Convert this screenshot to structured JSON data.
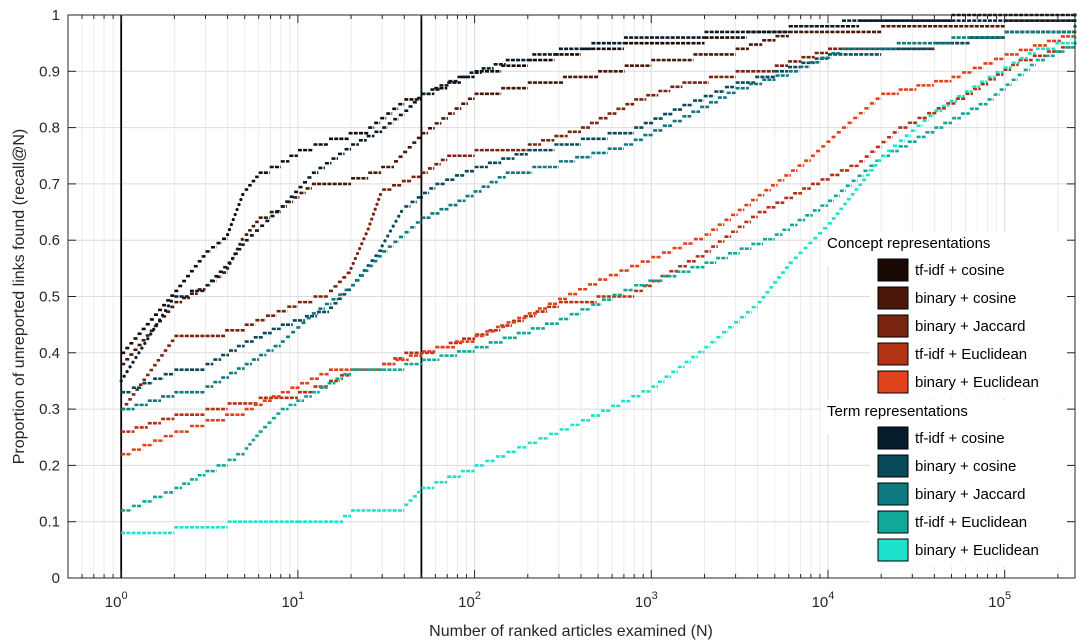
{
  "chart_data": {
    "type": "scatter",
    "title": "",
    "xlabel": "Number of ranked articles examined (N)",
    "ylabel": "Proportion of unreported links found (recall@N)",
    "xscale": "log",
    "xlim": [
      0.5,
      250000
    ],
    "ylim": [
      0,
      1
    ],
    "grid": true,
    "x_ticks": [
      {
        "value": 1,
        "base": "10",
        "exp": "0"
      },
      {
        "value": 10,
        "base": "10",
        "exp": "1"
      },
      {
        "value": 100,
        "base": "10",
        "exp": "2"
      },
      {
        "value": 1000,
        "base": "10",
        "exp": "3"
      },
      {
        "value": 10000,
        "base": "10",
        "exp": "4"
      },
      {
        "value": 100000,
        "base": "10",
        "exp": "5"
      }
    ],
    "y_ticks": [
      "0",
      "0.1",
      "0.2",
      "0.3",
      "0.4",
      "0.5",
      "0.6",
      "0.7",
      "0.8",
      "0.9",
      "1"
    ],
    "vertical_lines": [
      1,
      50
    ],
    "legend_placement": "right",
    "legend_groups": [
      {
        "heading": "Concept representations",
        "series": [
          0,
          1,
          2,
          3,
          4
        ]
      },
      {
        "heading": "Term representations",
        "series": [
          5,
          6,
          7,
          8,
          9
        ]
      }
    ],
    "series": [
      {
        "name": "tf-idf + cosine",
        "color": "#1a0a05",
        "points": [
          [
            1,
            0.4
          ],
          [
            2,
            0.51
          ],
          [
            3,
            0.58
          ],
          [
            4,
            0.61
          ],
          [
            5,
            0.69
          ],
          [
            6,
            0.72
          ],
          [
            8,
            0.74
          ],
          [
            10,
            0.76
          ],
          [
            15,
            0.78
          ],
          [
            25,
            0.8
          ],
          [
            40,
            0.85
          ],
          [
            50,
            0.86
          ],
          [
            70,
            0.88
          ],
          [
            100,
            0.9
          ],
          [
            200,
            0.92
          ],
          [
            400,
            0.94
          ],
          [
            700,
            0.95
          ],
          [
            2000,
            0.96
          ],
          [
            6000,
            0.98
          ],
          [
            15000,
            0.99
          ],
          [
            50000,
            1.0
          ],
          [
            250000,
            1.0
          ]
        ]
      },
      {
        "name": "binary + cosine",
        "color": "#4a1708",
        "points": [
          [
            1,
            0.38
          ],
          [
            2,
            0.49
          ],
          [
            3,
            0.52
          ],
          [
            4,
            0.55
          ],
          [
            5,
            0.61
          ],
          [
            6,
            0.64
          ],
          [
            8,
            0.66
          ],
          [
            12,
            0.7
          ],
          [
            20,
            0.71
          ],
          [
            25,
            0.72
          ],
          [
            35,
            0.74
          ],
          [
            50,
            0.79
          ],
          [
            100,
            0.86
          ],
          [
            200,
            0.88
          ],
          [
            500,
            0.9
          ],
          [
            1000,
            0.92
          ],
          [
            3000,
            0.94
          ],
          [
            6000,
            0.97
          ],
          [
            20000,
            0.98
          ],
          [
            100000,
            0.99
          ],
          [
            250000,
            0.99
          ]
        ]
      },
      {
        "name": "binary + Jaccard",
        "color": "#7a2510",
        "points": [
          [
            1,
            0.3
          ],
          [
            2,
            0.43
          ],
          [
            3,
            0.43
          ],
          [
            5,
            0.45
          ],
          [
            10,
            0.49
          ],
          [
            15,
            0.51
          ],
          [
            20,
            0.55
          ],
          [
            25,
            0.62
          ],
          [
            30,
            0.69
          ],
          [
            50,
            0.72
          ],
          [
            70,
            0.75
          ],
          [
            100,
            0.76
          ],
          [
            200,
            0.77
          ],
          [
            400,
            0.8
          ],
          [
            800,
            0.85
          ],
          [
            1500,
            0.88
          ],
          [
            3000,
            0.9
          ],
          [
            5000,
            0.91
          ],
          [
            10000,
            0.94
          ],
          [
            40000,
            0.95
          ],
          [
            100000,
            0.97
          ],
          [
            250000,
            0.98
          ]
        ]
      },
      {
        "name": "tf-idf + Euclidean",
        "color": "#b23414",
        "points": [
          [
            1,
            0.26
          ],
          [
            2,
            0.29
          ],
          [
            3,
            0.3
          ],
          [
            4,
            0.31
          ],
          [
            6,
            0.32
          ],
          [
            10,
            0.33
          ],
          [
            15,
            0.35
          ],
          [
            20,
            0.37
          ],
          [
            30,
            0.38
          ],
          [
            40,
            0.4
          ],
          [
            60,
            0.41
          ],
          [
            120,
            0.44
          ],
          [
            300,
            0.49
          ],
          [
            800,
            0.51
          ],
          [
            2000,
            0.58
          ],
          [
            4000,
            0.65
          ],
          [
            8000,
            0.7
          ],
          [
            15000,
            0.74
          ],
          [
            25000,
            0.8
          ],
          [
            60000,
            0.86
          ],
          [
            120000,
            0.92
          ],
          [
            250000,
            0.95
          ]
        ]
      },
      {
        "name": "binary + Euclidean",
        "color": "#e0431c",
        "points": [
          [
            1,
            0.22
          ],
          [
            2,
            0.26
          ],
          [
            3,
            0.28
          ],
          [
            5,
            0.3
          ],
          [
            8,
            0.33
          ],
          [
            15,
            0.37
          ],
          [
            30,
            0.38
          ],
          [
            60,
            0.41
          ],
          [
            100,
            0.43
          ],
          [
            200,
            0.47
          ],
          [
            500,
            0.53
          ],
          [
            1000,
            0.57
          ],
          [
            2000,
            0.61
          ],
          [
            4000,
            0.68
          ],
          [
            8000,
            0.75
          ],
          [
            12000,
            0.8
          ],
          [
            20000,
            0.86
          ],
          [
            50000,
            0.89
          ],
          [
            100000,
            0.93
          ],
          [
            250000,
            0.97
          ]
        ]
      },
      {
        "name": "tf-idf + cosine",
        "color": "#051c2c",
        "points": [
          [
            1,
            0.35
          ],
          [
            2,
            0.5
          ],
          [
            3,
            0.52
          ],
          [
            4,
            0.56
          ],
          [
            5,
            0.6
          ],
          [
            8,
            0.66
          ],
          [
            12,
            0.72
          ],
          [
            20,
            0.77
          ],
          [
            30,
            0.8
          ],
          [
            40,
            0.83
          ],
          [
            50,
            0.86
          ],
          [
            80,
            0.89
          ],
          [
            150,
            0.92
          ],
          [
            300,
            0.94
          ],
          [
            700,
            0.96
          ],
          [
            2000,
            0.97
          ],
          [
            6000,
            0.98
          ],
          [
            12000,
            0.99
          ],
          [
            50000,
            0.99
          ],
          [
            250000,
            1.0
          ]
        ]
      },
      {
        "name": "binary + cosine",
        "color": "#074a5a",
        "points": [
          [
            1,
            0.33
          ],
          [
            2,
            0.37
          ],
          [
            3,
            0.38
          ],
          [
            5,
            0.42
          ],
          [
            8,
            0.45
          ],
          [
            15,
            0.48
          ],
          [
            20,
            0.52
          ],
          [
            30,
            0.59
          ],
          [
            40,
            0.66
          ],
          [
            60,
            0.7
          ],
          [
            100,
            0.73
          ],
          [
            200,
            0.76
          ],
          [
            400,
            0.78
          ],
          [
            800,
            0.8
          ],
          [
            1500,
            0.84
          ],
          [
            3000,
            0.88
          ],
          [
            5000,
            0.9
          ],
          [
            10000,
            0.93
          ],
          [
            40000,
            0.95
          ],
          [
            100000,
            0.97
          ],
          [
            250000,
            0.98
          ]
        ]
      },
      {
        "name": "binary + Jaccard",
        "color": "#0d7a82",
        "points": [
          [
            1,
            0.3
          ],
          [
            2,
            0.33
          ],
          [
            3,
            0.34
          ],
          [
            5,
            0.38
          ],
          [
            8,
            0.42
          ],
          [
            12,
            0.47
          ],
          [
            20,
            0.52
          ],
          [
            30,
            0.58
          ],
          [
            50,
            0.64
          ],
          [
            80,
            0.67
          ],
          [
            150,
            0.72
          ],
          [
            300,
            0.74
          ],
          [
            700,
            0.77
          ],
          [
            1500,
            0.82
          ],
          [
            3000,
            0.87
          ],
          [
            6000,
            0.9
          ],
          [
            12000,
            0.94
          ],
          [
            50000,
            0.96
          ],
          [
            100000,
            0.97
          ],
          [
            250000,
            0.98
          ]
        ]
      },
      {
        "name": "tf-idf + Euclidean",
        "color": "#12a898",
        "points": [
          [
            1,
            0.12
          ],
          [
            2,
            0.16
          ],
          [
            3,
            0.19
          ],
          [
            4,
            0.21
          ],
          [
            5,
            0.23
          ],
          [
            6,
            0.26
          ],
          [
            8,
            0.3
          ],
          [
            12,
            0.33
          ],
          [
            20,
            0.37
          ],
          [
            40,
            0.38
          ],
          [
            100,
            0.41
          ],
          [
            300,
            0.46
          ],
          [
            800,
            0.52
          ],
          [
            2000,
            0.56
          ],
          [
            5000,
            0.61
          ],
          [
            10000,
            0.67
          ],
          [
            20000,
            0.75
          ],
          [
            40000,
            0.8
          ],
          [
            80000,
            0.85
          ],
          [
            150000,
            0.92
          ],
          [
            250000,
            0.95
          ]
        ]
      },
      {
        "name": "binary + Euclidean",
        "color": "#1ee2cc",
        "points": [
          [
            1,
            0.08
          ],
          [
            2,
            0.09
          ],
          [
            3,
            0.09
          ],
          [
            4,
            0.1
          ],
          [
            10,
            0.1
          ],
          [
            18,
            0.11
          ],
          [
            20,
            0.12
          ],
          [
            40,
            0.13
          ],
          [
            50,
            0.16
          ],
          [
            70,
            0.18
          ],
          [
            100,
            0.2
          ],
          [
            200,
            0.24
          ],
          [
            400,
            0.28
          ],
          [
            1000,
            0.34
          ],
          [
            2000,
            0.41
          ],
          [
            4000,
            0.49
          ],
          [
            6000,
            0.56
          ],
          [
            10000,
            0.63
          ],
          [
            20000,
            0.75
          ],
          [
            40000,
            0.83
          ],
          [
            80000,
            0.89
          ],
          [
            150000,
            0.94
          ],
          [
            250000,
            0.96
          ]
        ]
      }
    ]
  }
}
